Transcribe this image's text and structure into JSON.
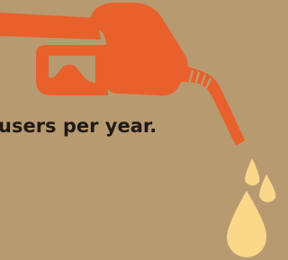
{
  "caption": "users per year."
}
